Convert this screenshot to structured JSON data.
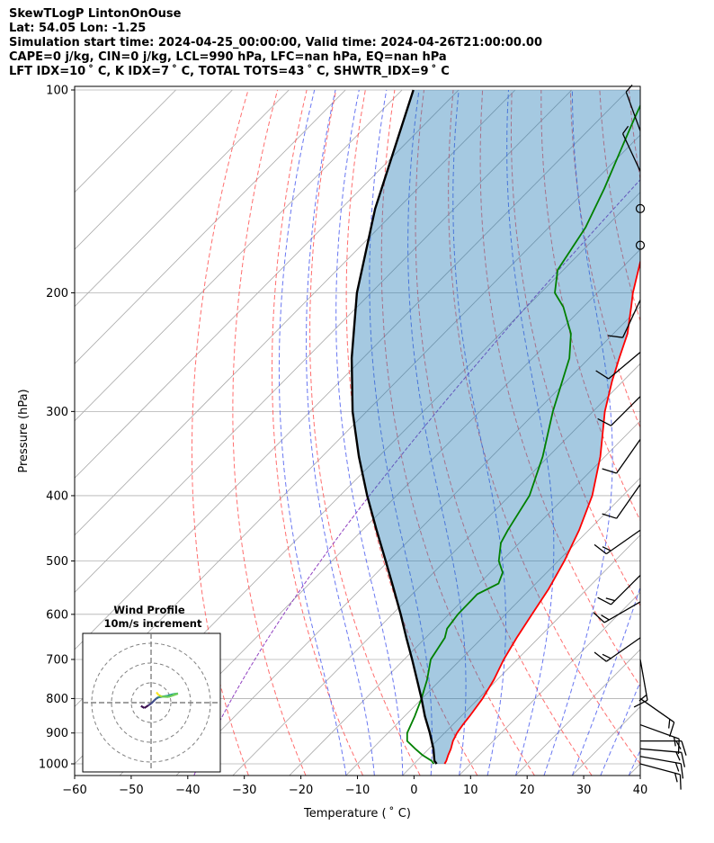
{
  "header": {
    "line1": "SkewTLogP LintonOnOuse",
    "line2": "Lat: 54.05   Lon: -1.25",
    "line3": "Simulation start time: 2024-04-25_00:00:00, Valid time: 2024-04-26T21:00:00.00",
    "line4": "CAPE=0 j/kg, CIN=0 j/kg, LCL=990 hPa, LFC=nan hPa, EQ=nan hPa",
    "line5": "LFT IDX=10 ˚ C, K IDX=7 ˚ C, TOTAL TOTS=43 ˚ C, SHWTR_IDX=9 ˚ C"
  },
  "chart_data": {
    "type": "line",
    "subtype": "skew-T log-P diagram",
    "xlabel": "Temperature ( ˚ C)",
    "ylabel": "Pressure (hPa)",
    "xlim": [
      -60,
      40
    ],
    "ylim": [
      1040,
      100
    ],
    "x_ticks": [
      -60,
      -50,
      -40,
      -30,
      -20,
      -10,
      0,
      10,
      20,
      30,
      40
    ],
    "x_tick_labels": [
      "−60",
      "−50",
      "−40",
      "−30",
      "−20",
      "−10",
      "0",
      "10",
      "20",
      "30",
      "40"
    ],
    "y_ticks": [
      1000,
      900,
      800,
      700,
      600,
      500,
      400,
      300,
      200,
      100
    ],
    "y_scale": "log",
    "grid": true,
    "series": [
      {
        "color": "#ff0000",
        "points": [
          [
            1000,
            5.4
          ],
          [
            990,
            5.2
          ],
          [
            970,
            4.5
          ],
          [
            950,
            3.9
          ],
          [
            925,
            2.9
          ],
          [
            900,
            2.2
          ],
          [
            875,
            1.8
          ],
          [
            850,
            1.5
          ],
          [
            800,
            0.7
          ],
          [
            750,
            -0.6
          ],
          [
            700,
            -2.4
          ],
          [
            650,
            -3.9
          ],
          [
            600,
            -5.3
          ],
          [
            550,
            -6.8
          ],
          [
            500,
            -8.9
          ],
          [
            450,
            -11.7
          ],
          [
            400,
            -15.4
          ],
          [
            350,
            -20.8
          ],
          [
            300,
            -27.9
          ],
          [
            270,
            -32.0
          ],
          [
            260,
            -33.3
          ],
          [
            250,
            -34.7
          ],
          [
            230,
            -37.5
          ],
          [
            210,
            -41.5
          ],
          [
            200,
            -43.7
          ],
          [
            180,
            -47.8
          ],
          [
            160,
            -51.7
          ],
          [
            140,
            -55.3
          ],
          [
            120,
            -57.8
          ],
          [
            110,
            -59.0
          ],
          [
            100,
            -60.2
          ]
        ]
      },
      {
        "color": "#008000",
        "points": [
          [
            1000,
            3.5
          ],
          [
            990,
            2.6
          ],
          [
            970,
            -0.1
          ],
          [
            950,
            -2.4
          ],
          [
            925,
            -5.2
          ],
          [
            900,
            -6.6
          ],
          [
            850,
            -8.2
          ],
          [
            800,
            -10.1
          ],
          [
            750,
            -12.4
          ],
          [
            700,
            -15.3
          ],
          [
            650,
            -16.6
          ],
          [
            630,
            -17.8
          ],
          [
            600,
            -18.4
          ],
          [
            560,
            -18.5
          ],
          [
            540,
            -16.6
          ],
          [
            520,
            -17.8
          ],
          [
            500,
            -20.5
          ],
          [
            470,
            -23.3
          ],
          [
            450,
            -24.3
          ],
          [
            400,
            -26.5
          ],
          [
            350,
            -31.0
          ],
          [
            300,
            -37.1
          ],
          [
            250,
            -43.5
          ],
          [
            230,
            -47.5
          ],
          [
            210,
            -53.5
          ],
          [
            200,
            -57.5
          ],
          [
            185,
            -61.0
          ],
          [
            160,
            -63.5
          ],
          [
            140,
            -67.0
          ],
          [
            120,
            -71.5
          ],
          [
            110,
            -74.0
          ],
          [
            100,
            -76.6
          ]
        ]
      },
      {
        "color": "#000000",
        "points": [
          [
            1000,
            4.0
          ],
          [
            990,
            3.1
          ],
          [
            950,
            0.8
          ],
          [
            900,
            -2.6
          ],
          [
            850,
            -6.4
          ],
          [
            800,
            -10.1
          ],
          [
            750,
            -14.2
          ],
          [
            700,
            -18.6
          ],
          [
            650,
            -23.4
          ],
          [
            600,
            -28.5
          ],
          [
            550,
            -34.2
          ],
          [
            500,
            -40.5
          ],
          [
            450,
            -47.5
          ],
          [
            400,
            -55.2
          ],
          [
            350,
            -63.5
          ],
          [
            300,
            -72.5
          ],
          [
            250,
            -82.0
          ],
          [
            200,
            -92.5
          ],
          [
            150,
            -104.0
          ],
          [
            100,
            -118.0
          ]
        ]
      }
    ],
    "wind_barbs": [
      {
        "p": 1000,
        "speed_kt": 15,
        "dir": 105
      },
      {
        "p": 975,
        "speed_kt": 15,
        "dir": 100
      },
      {
        "p": 950,
        "speed_kt": 15,
        "dir": 95
      },
      {
        "p": 925,
        "speed_kt": 15,
        "dir": 90
      },
      {
        "p": 875,
        "speed_kt": 15,
        "dir": 110
      },
      {
        "p": 800,
        "speed_kt": 15,
        "dir": 125
      },
      {
        "p": 700,
        "speed_kt": 15,
        "dir": 170
      },
      {
        "p": 650,
        "speed_kt": 15,
        "dir": 235
      },
      {
        "p": 575,
        "speed_kt": 15,
        "dir": 240
      },
      {
        "p": 525,
        "speed_kt": 15,
        "dir": 225
      },
      {
        "p": 450,
        "speed_kt": 15,
        "dir": 235
      },
      {
        "p": 385,
        "speed_kt": 10,
        "dir": 215
      },
      {
        "p": 330,
        "speed_kt": 10,
        "dir": 215
      },
      {
        "p": 285,
        "speed_kt": 10,
        "dir": 225
      },
      {
        "p": 245,
        "speed_kt": 10,
        "dir": 230
      },
      {
        "p": 205,
        "speed_kt": 10,
        "dir": 205
      },
      {
        "p": 170,
        "speed_kt": 0,
        "dir": 0
      },
      {
        "p": 150,
        "speed_kt": 0,
        "dir": 0
      },
      {
        "p": 132,
        "speed_kt": 5,
        "dir": 335
      },
      {
        "p": 115,
        "speed_kt": 5,
        "dir": 340
      }
    ],
    "inset": {
      "title": "Wind Profile",
      "subtitle": "10m/s increment",
      "type": "hodograph",
      "ring_speeds": [
        10,
        20,
        30
      ],
      "trace": [
        [
          -3,
          -1
        ],
        [
          -2,
          -1.6
        ],
        [
          -0.8,
          -0.8
        ],
        [
          0,
          -0.3
        ],
        [
          1,
          0.7
        ],
        [
          1.5,
          1.2
        ],
        [
          2.2,
          1.6
        ],
        [
          3.5,
          1.8
        ],
        [
          4.8,
          2
        ],
        [
          6.5,
          2.5
        ],
        [
          8,
          2.7
        ],
        [
          5.2,
          1.7
        ],
        [
          3.2,
          1.8
        ],
        [
          2.3,
          2.2
        ],
        [
          1.6,
          3.1
        ]
      ]
    }
  }
}
